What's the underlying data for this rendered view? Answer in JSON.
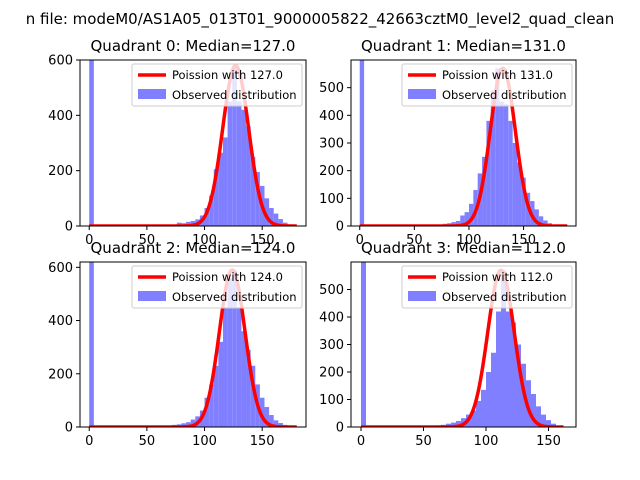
{
  "figure": {
    "suptitle": "n file: modeM0/AS1A05_013T01_9000005822_42663cztM0_level2_quad_clean"
  },
  "colors": {
    "poisson_line": "#ff0000",
    "histogram": "#7f7fff",
    "axes": "#000000",
    "background": "#ffffff"
  },
  "chart_data": [
    {
      "type": "bar",
      "title": "Quadrant 0: Median=127.0",
      "xlim": [
        -8,
        188
      ],
      "ylim": [
        0,
        600
      ],
      "xticks": [
        0,
        50,
        100,
        150
      ],
      "yticks": [
        0,
        200,
        400,
        600
      ],
      "bin_width": 4,
      "legend": [
        "Poission with 127.0",
        "Observed distribution"
      ],
      "legend_position": "upper right",
      "poisson_mean": 127.0,
      "series": [
        {
          "name": "Poission with 127.0",
          "kind": "line",
          "mean": 127.0,
          "peak": 580,
          "x_range": [
            0,
            180
          ]
        },
        {
          "name": "Observed distribution",
          "kind": "histogram",
          "bins": [
            [
              0,
              605
            ],
            [
              4,
              2
            ],
            [
              72,
              2
            ],
            [
              76,
              12
            ],
            [
              80,
              10
            ],
            [
              84,
              15
            ],
            [
              88,
              18
            ],
            [
              92,
              24
            ],
            [
              96,
              38
            ],
            [
              100,
              65
            ],
            [
              104,
              110
            ],
            [
              108,
              205
            ],
            [
              112,
              265
            ],
            [
              116,
              320
            ],
            [
              120,
              450
            ],
            [
              124,
              580
            ],
            [
              128,
              450
            ],
            [
              132,
              420
            ],
            [
              136,
              360
            ],
            [
              140,
              250
            ],
            [
              144,
              195
            ],
            [
              148,
              145
            ],
            [
              152,
              100
            ],
            [
              156,
              65
            ],
            [
              160,
              45
            ],
            [
              164,
              25
            ],
            [
              168,
              12
            ],
            [
              172,
              6
            ],
            [
              176,
              3
            ]
          ]
        }
      ]
    },
    {
      "type": "bar",
      "title": "Quadrant 1: Median=131.0",
      "xlim": [
        -8,
        198
      ],
      "ylim": [
        0,
        600
      ],
      "xticks": [
        0,
        50,
        100,
        150
      ],
      "yticks": [
        0,
        100,
        200,
        300,
        400,
        500
      ],
      "bin_width": 4,
      "legend": [
        "Poission with 131.0",
        "Observed distribution"
      ],
      "legend_position": "upper right",
      "poisson_mean": 131.0,
      "series": [
        {
          "name": "Poission with 131.0",
          "kind": "line",
          "mean": 131.0,
          "peak": 570,
          "x_range": [
            0,
            190
          ]
        },
        {
          "name": "Observed distribution",
          "kind": "histogram",
          "bins": [
            [
              0,
              600
            ],
            [
              4,
              2
            ],
            [
              76,
              8
            ],
            [
              80,
              10
            ],
            [
              84,
              14
            ],
            [
              88,
              18
            ],
            [
              92,
              38
            ],
            [
              96,
              50
            ],
            [
              100,
              80
            ],
            [
              104,
              130
            ],
            [
              108,
              190
            ],
            [
              112,
              250
            ],
            [
              116,
              380
            ],
            [
              120,
              490
            ],
            [
              124,
              570
            ],
            [
              128,
              450
            ],
            [
              132,
              440
            ],
            [
              136,
              380
            ],
            [
              140,
              300
            ],
            [
              144,
              230
            ],
            [
              148,
              175
            ],
            [
              152,
              120
            ],
            [
              156,
              90
            ],
            [
              160,
              60
            ],
            [
              164,
              35
            ],
            [
              168,
              20
            ],
            [
              172,
              10
            ],
            [
              176,
              5
            ],
            [
              180,
              2
            ]
          ]
        }
      ]
    },
    {
      "type": "bar",
      "title": "Quadrant 2: Median=124.0",
      "xlim": [
        -8,
        188
      ],
      "ylim": [
        0,
        620
      ],
      "xticks": [
        0,
        50,
        100,
        150
      ],
      "yticks": [
        0,
        200,
        400,
        600
      ],
      "bin_width": 4,
      "legend": [
        "Poission with 124.0",
        "Observed distribution"
      ],
      "legend_position": "upper right",
      "poisson_mean": 124.0,
      "series": [
        {
          "name": "Poission with 124.0",
          "kind": "line",
          "mean": 124.0,
          "peak": 590,
          "x_range": [
            0,
            180
          ]
        },
        {
          "name": "Observed distribution",
          "kind": "histogram",
          "bins": [
            [
              0,
              620
            ],
            [
              4,
              2
            ],
            [
              68,
              4
            ],
            [
              72,
              8
            ],
            [
              76,
              10
            ],
            [
              80,
              14
            ],
            [
              84,
              18
            ],
            [
              88,
              28
            ],
            [
              92,
              40
            ],
            [
              96,
              62
            ],
            [
              100,
              110
            ],
            [
              104,
              160
            ],
            [
              108,
              230
            ],
            [
              112,
              320
            ],
            [
              116,
              450
            ],
            [
              120,
              560
            ],
            [
              124,
              590
            ],
            [
              128,
              450
            ],
            [
              132,
              360
            ],
            [
              136,
              290
            ],
            [
              140,
              230
            ],
            [
              144,
              160
            ],
            [
              148,
              110
            ],
            [
              152,
              75
            ],
            [
              156,
              45
            ],
            [
              160,
              25
            ],
            [
              164,
              15
            ],
            [
              168,
              8
            ],
            [
              172,
              4
            ]
          ]
        }
      ]
    },
    {
      "type": "bar",
      "title": "Quadrant 3: Median=112.0",
      "xlim": [
        -8,
        172
      ],
      "ylim": [
        0,
        600
      ],
      "xticks": [
        0,
        50,
        100,
        150
      ],
      "yticks": [
        0,
        100,
        200,
        300,
        400,
        500
      ],
      "bin_width": 4,
      "legend": [
        "Poission with 112.0",
        "Observed distribution"
      ],
      "legend_position": "upper right",
      "poisson_mean": 112.0,
      "series": [
        {
          "name": "Poission with 112.0",
          "kind": "line",
          "mean": 112.0,
          "peak": 570,
          "x_range": [
            0,
            162
          ]
        },
        {
          "name": "Observed distribution",
          "kind": "histogram",
          "bins": [
            [
              0,
              600
            ],
            [
              4,
              2
            ],
            [
              56,
              4
            ],
            [
              60,
              6
            ],
            [
              64,
              8
            ],
            [
              68,
              12
            ],
            [
              72,
              16
            ],
            [
              76,
              22
            ],
            [
              80,
              32
            ],
            [
              84,
              45
            ],
            [
              88,
              60
            ],
            [
              92,
              95
            ],
            [
              96,
              135
            ],
            [
              100,
              200
            ],
            [
              104,
              270
            ],
            [
              108,
              420
            ],
            [
              112,
              570
            ],
            [
              116,
              420
            ],
            [
              120,
              380
            ],
            [
              124,
              300
            ],
            [
              128,
              230
            ],
            [
              132,
              170
            ],
            [
              136,
              120
            ],
            [
              140,
              75
            ],
            [
              144,
              45
            ],
            [
              148,
              25
            ],
            [
              152,
              12
            ],
            [
              156,
              5
            ]
          ]
        }
      ]
    }
  ]
}
